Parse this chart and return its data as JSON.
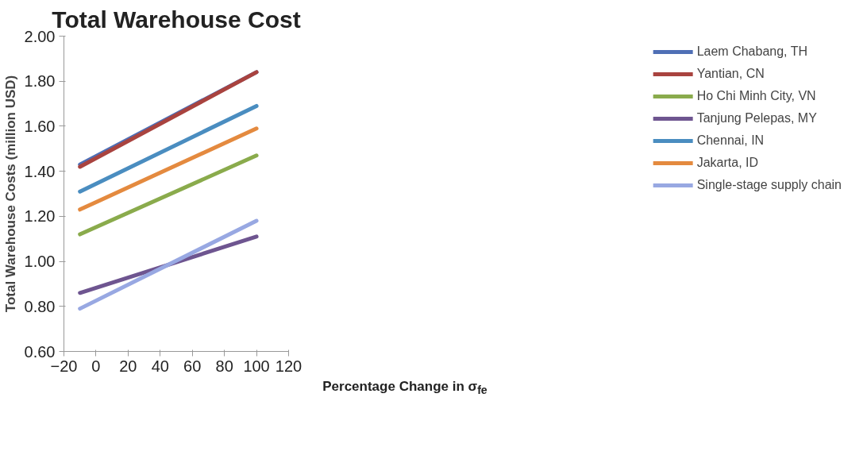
{
  "chart_data": {
    "type": "line",
    "title": "Total Warehouse Cost",
    "xlabel": "Percentage Change in σ$_{fe}$",
    "ylabel": "Total Warehouse Costs (million USD)",
    "x": [
      -10,
      100
    ],
    "series": [
      {
        "name": "Laem Chabang, TH",
        "color": "#4f6fb5",
        "values": [
          1.43,
          1.84
        ]
      },
      {
        "name": "Yantian, CN",
        "color": "#a9433f",
        "values": [
          1.42,
          1.84
        ]
      },
      {
        "name": "Ho Chi Minh City, VN",
        "color": "#8aab4c",
        "values": [
          1.12,
          1.47
        ]
      },
      {
        "name": "Tanjung Pelepas, MY",
        "color": "#6e5590",
        "values": [
          0.86,
          1.11
        ]
      },
      {
        "name": "Chennai, IN",
        "color": "#4a8dc0",
        "values": [
          1.31,
          1.69
        ]
      },
      {
        "name": "Jakarta, ID",
        "color": "#e48a3f",
        "values": [
          1.23,
          1.59
        ]
      },
      {
        "name": "Single-stage supply chain",
        "color": "#98a8e2",
        "values": [
          0.79,
          1.18
        ]
      }
    ],
    "xlim": [
      -20,
      120
    ],
    "xticks": [
      -20,
      0,
      20,
      40,
      60,
      80,
      100,
      120
    ],
    "ylim": [
      0.6,
      2.0
    ],
    "yticks": [
      {
        "value": 0.6,
        "label": "0.60"
      },
      {
        "value": 0.8,
        "label": "0.80"
      },
      {
        "value": 1.0,
        "label": "1.00"
      },
      {
        "value": 1.2,
        "label": "1.20"
      },
      {
        "value": 1.4,
        "label": "1.40"
      },
      {
        "value": 1.6,
        "label": "1.60"
      },
      {
        "value": 1.8,
        "label": "1.80"
      },
      {
        "value": 2.0,
        "label": "2.00"
      }
    ],
    "grid": false,
    "legend": "right",
    "marker": "none",
    "line_style": "solid"
  }
}
